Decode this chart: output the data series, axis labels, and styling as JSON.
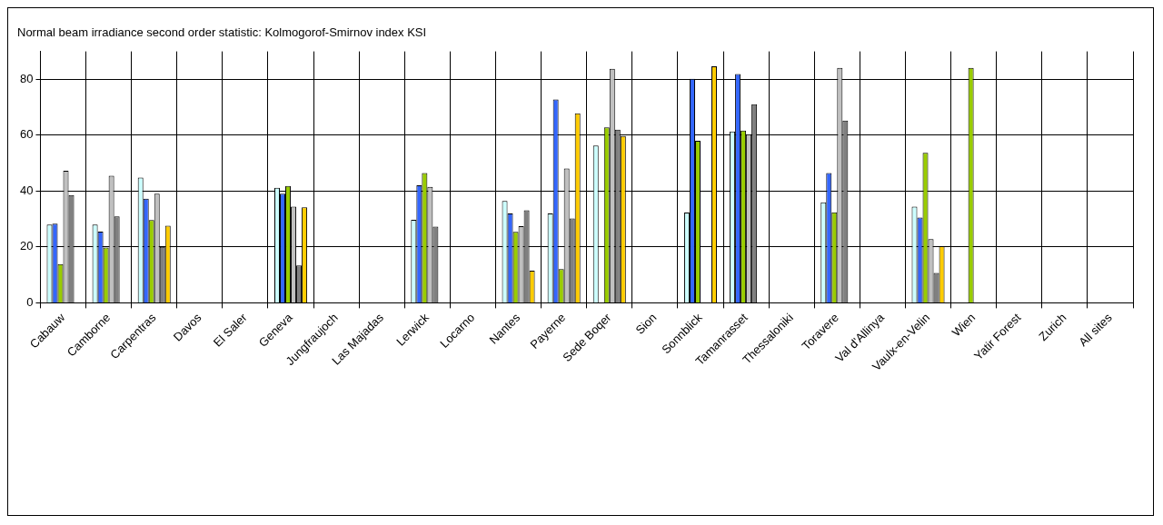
{
  "chart_data": {
    "type": "bar",
    "title": "Normal beam irradiance second order statistic: Kolmogorof-Smirnov index KSI",
    "categories": [
      "Cabauw",
      "Camborne",
      "Carpentras",
      "Davos",
      "El Saler",
      "Geneva",
      "Jungfraujoch",
      "Las Majadas",
      "Lerwick",
      "Locarno",
      "Nantes",
      "Payerne",
      "Sede Boqer",
      "Sion",
      "Sonnblick",
      "Tamanrasset",
      "Thessaloniki",
      "Toravere",
      "Val d'Allinya",
      "Vaulx-en-Velin",
      "Wien",
      "Yatir Forest",
      "Zurich",
      "All sites"
    ],
    "series": [
      {
        "color": "#ccffff",
        "values": [
          28,
          28,
          44.8,
          null,
          null,
          41.2,
          null,
          null,
          29.7,
          null,
          36.5,
          32,
          56.3,
          null,
          32.3,
          61.3,
          null,
          36,
          null,
          34.4,
          null,
          null,
          null,
          null
        ]
      },
      {
        "color": "#3366ff",
        "values": [
          28.3,
          25.5,
          37.3,
          null,
          null,
          39.1,
          null,
          null,
          42.1,
          null,
          32,
          72.8,
          null,
          null,
          80.2,
          81.9,
          null,
          46.5,
          null,
          30.5,
          null,
          null,
          null,
          null
        ]
      },
      {
        "color": "#99cc00",
        "values": [
          13.9,
          19.8,
          29.6,
          null,
          null,
          41.8,
          null,
          null,
          46.5,
          null,
          25.4,
          12.1,
          62.8,
          null,
          58,
          61.7,
          null,
          32.4,
          null,
          53.7,
          84.1,
          null,
          null,
          null
        ]
      },
      {
        "color": "#c0c0c0",
        "values": [
          47.3,
          45.5,
          39.1,
          null,
          null,
          34.4,
          null,
          null,
          41.5,
          null,
          27.4,
          48.1,
          83.8,
          null,
          null,
          60.4,
          null,
          84.1,
          null,
          22.8,
          null,
          null,
          null,
          null
        ]
      },
      {
        "color": "#808080",
        "values": [
          38.6,
          30.9,
          20,
          null,
          null,
          13.4,
          null,
          null,
          27.3,
          null,
          33.1,
          30.2,
          62,
          null,
          null,
          71.1,
          null,
          65.2,
          null,
          10.7,
          null,
          null,
          null,
          null
        ]
      },
      {
        "color": "#ffcc00",
        "values": [
          null,
          null,
          27.6,
          null,
          null,
          34.2,
          null,
          null,
          null,
          null,
          11.5,
          67.8,
          59.7,
          null,
          84.7,
          null,
          null,
          null,
          null,
          20.3,
          null,
          null,
          null,
          null
        ]
      }
    ],
    "ylim": [
      0,
      90
    ],
    "yticks": [
      0,
      20,
      40,
      60,
      80
    ],
    "grid": true
  }
}
